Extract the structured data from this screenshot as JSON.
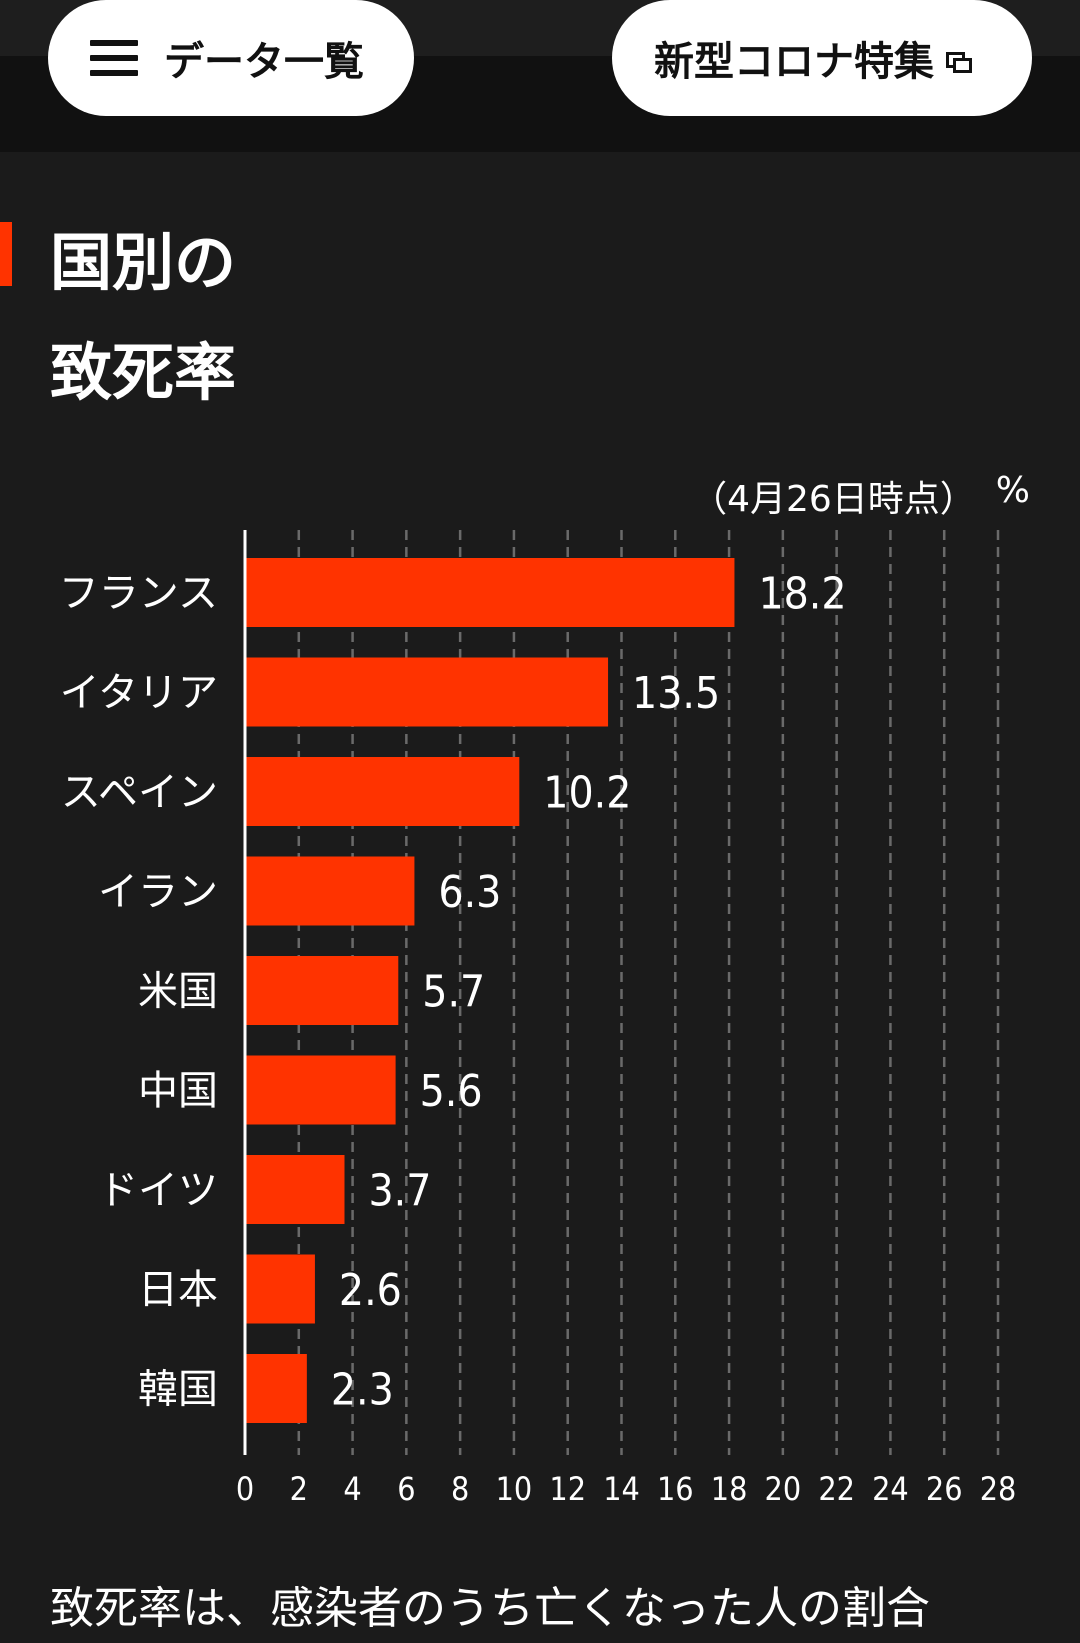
{
  "nav": {
    "menu_label": "データ一覧",
    "feature_label": "新型コロナ特集"
  },
  "section": {
    "title_line1": "国別の",
    "title_line2": "致死率"
  },
  "chart_data": {
    "type": "bar",
    "orientation": "horizontal",
    "title": "国別の致死率",
    "note": "（4月26日時点）",
    "unit": "%",
    "categories": [
      "フランス",
      "イタリア",
      "スペイン",
      "イラン",
      "米国",
      "中国",
      "ドイツ",
      "日本",
      "韓国"
    ],
    "values": [
      18.2,
      13.5,
      10.2,
      6.3,
      5.7,
      5.6,
      3.7,
      2.6,
      2.3
    ],
    "value_labels": [
      "18.2",
      "13.5",
      "10.2",
      "6.3",
      "5.7",
      "5.6",
      "3.7",
      "2.6",
      "2.3"
    ],
    "xlim": [
      0,
      28
    ],
    "xticks": [
      0,
      2,
      4,
      6,
      8,
      10,
      12,
      14,
      16,
      18,
      20,
      22,
      24,
      26,
      28
    ],
    "grid": true,
    "bar_color": "#ff3300"
  },
  "caption": "致死率は、感染者のうち亡くなった人の割合"
}
